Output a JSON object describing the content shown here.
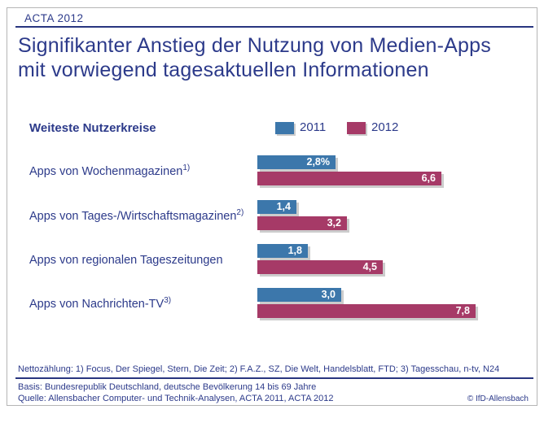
{
  "colors": {
    "navy_text": "#2c3a8a",
    "bar_2011": "#3c77ab",
    "bar_2012": "#a63a67",
    "shadow": "#cccccc"
  },
  "header": {
    "tag": "ACTA 2012",
    "title_line1": "Signifikanter Anstieg der Nutzung von Medien-Apps",
    "title_line2": "mit vorwiegend tagesaktuellen Informationen"
  },
  "legend": {
    "axis_label": "Weiteste Nutzerkreise",
    "items": [
      {
        "label": "2011",
        "color": "#3c77ab"
      },
      {
        "label": "2012",
        "color": "#a63a67"
      }
    ]
  },
  "chart_data": {
    "type": "bar",
    "orientation": "horizontal",
    "title": "Signifikanter Anstieg der Nutzung von Medien-Apps mit vorwiegend tagesaktuellen Informationen",
    "subtitle": "Weiteste Nutzerkreise",
    "categories": [
      "Apps von Wochenmagazinen",
      "Apps von Tages-/Wirtschaftsmagazinen",
      "Apps von regionalen Tageszeitungen",
      "Apps von Nachrichten-TV"
    ],
    "category_footnote_marks": [
      "1)",
      "2)",
      "",
      "3)"
    ],
    "series": [
      {
        "name": "2011",
        "color": "#3c77ab",
        "values": [
          2.8,
          1.4,
          1.8,
          3.0
        ]
      },
      {
        "name": "2012",
        "color": "#a63a67",
        "values": [
          6.6,
          3.2,
          4.5,
          7.8
        ]
      }
    ],
    "value_labels_2011": [
      "2,8%",
      "1,4",
      "1,8",
      "3,0"
    ],
    "value_labels_2012": [
      "6,6",
      "3,2",
      "4,5",
      "7,8"
    ],
    "xlim": [
      0,
      9.8
    ],
    "grid": false,
    "legend_position": "top"
  },
  "rows": [
    {
      "label": "Apps von Wochenmagazinen",
      "sup": "1)",
      "v2011": 2.8,
      "t2011": "2,8%",
      "v2012": 6.6,
      "t2012": "6,6"
    },
    {
      "label": "Apps von Tages-/Wirtschaftsmagazinen",
      "sup": "2)",
      "v2011": 1.4,
      "t2011": "1,4",
      "v2012": 3.2,
      "t2012": "3,2"
    },
    {
      "label": "Apps von regionalen Tageszeitungen",
      "sup": "",
      "v2011": 1.8,
      "t2011": "1,8",
      "v2012": 4.5,
      "t2012": "4,5"
    },
    {
      "label": "Apps von Nachrichten-TV",
      "sup": "3)",
      "v2011": 3.0,
      "t2011": "3,0",
      "v2012": 7.8,
      "t2012": "7,8"
    }
  ],
  "footer": {
    "note": "Nettozählung: 1) Focus, Der Spiegel, Stern, Die Zeit; 2) F.A.Z., SZ, Die Welt, Handelsblatt, FTD; 3) Tagesschau, n-tv, N24",
    "basis": "Basis: Bundesrepublik Deutschland, deutsche Bevölkerung 14 bis 69 Jahre",
    "source": "Quelle: Allensbacher Computer- und Technik-Analysen, ACTA 2011, ACTA 2012",
    "copyright": "© IfD-Allensbach"
  }
}
